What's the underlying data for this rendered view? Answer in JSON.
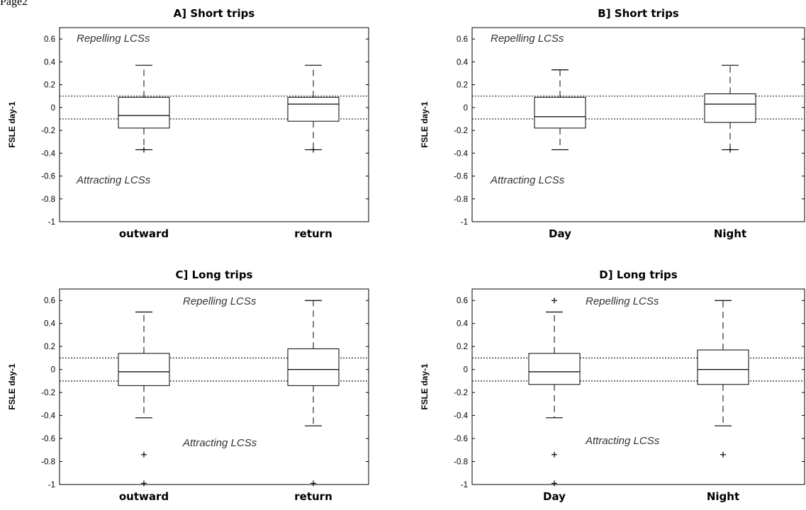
{
  "page_label": "Page2",
  "chart_data": [
    {
      "type": "box",
      "title": "A] Short trips",
      "ylabel": "FSLE day-1",
      "ylim": [
        -1,
        0.7
      ],
      "yticks": [
        "0.6",
        "0.4",
        "0.2",
        "0",
        "-0.2",
        "-0.4",
        "-0.6",
        "-0.8",
        "-1"
      ],
      "yticks_values": [
        0.6,
        0.4,
        0.2,
        0,
        -0.2,
        -0.4,
        -0.6,
        -0.8,
        -1
      ],
      "reference_lines": [
        0.1,
        -0.1
      ],
      "annotations": {
        "top": "Repelling LCSs",
        "bottom": "Attracting LCSs"
      },
      "categories": [
        "outward",
        "return"
      ],
      "boxes": [
        {
          "whisker_low": -0.37,
          "q1": -0.18,
          "median": -0.07,
          "q3": 0.09,
          "whisker_high": 0.37,
          "outliers": [
            -0.37
          ]
        },
        {
          "whisker_low": -0.37,
          "q1": -0.12,
          "median": 0.03,
          "q3": 0.09,
          "whisker_high": 0.37,
          "outliers": [
            -0.37
          ]
        }
      ]
    },
    {
      "type": "box",
      "title": "B] Short trips",
      "ylabel": "FSLE day-1",
      "ylim": [
        -1,
        0.7
      ],
      "yticks": [
        "0.6",
        "0.4",
        "0.2",
        "0",
        "-0.2",
        "-0.4",
        "-0.6",
        "-0.8",
        "-1"
      ],
      "yticks_values": [
        0.6,
        0.4,
        0.2,
        0,
        -0.2,
        -0.4,
        -0.6,
        -0.8,
        -1
      ],
      "reference_lines": [
        0.1,
        -0.1
      ],
      "annotations": {
        "top": "Repelling LCSs",
        "bottom": "Attracting LCSs"
      },
      "categories": [
        "Day",
        "Night"
      ],
      "boxes": [
        {
          "whisker_low": -0.37,
          "q1": -0.18,
          "median": -0.08,
          "q3": 0.09,
          "whisker_high": 0.33,
          "outliers": []
        },
        {
          "whisker_low": -0.37,
          "q1": -0.13,
          "median": 0.03,
          "q3": 0.12,
          "whisker_high": 0.37,
          "outliers": [
            -0.37
          ]
        }
      ]
    },
    {
      "type": "box",
      "title": "C] Long trips",
      "ylabel": "FSLE day-1",
      "ylim": [
        -1,
        0.7
      ],
      "yticks": [
        "0.6",
        "0.4",
        "0.2",
        "0",
        "-0.2",
        "-0.4",
        "-0.6",
        "-0.8",
        "-1"
      ],
      "yticks_values": [
        0.6,
        0.4,
        0.2,
        0,
        -0.2,
        -0.4,
        -0.6,
        -0.8,
        -1
      ],
      "reference_lines": [
        0.1,
        -0.1
      ],
      "annotations": {
        "top": "Repelling LCSs",
        "bottom": "Attracting LCSs"
      },
      "categories": [
        "outward",
        "return"
      ],
      "boxes": [
        {
          "whisker_low": -0.42,
          "q1": -0.14,
          "median": -0.02,
          "q3": 0.14,
          "whisker_high": 0.5,
          "outliers": [
            -0.74,
            -0.99
          ]
        },
        {
          "whisker_low": -0.49,
          "q1": -0.14,
          "median": 0.0,
          "q3": 0.18,
          "whisker_high": 0.6,
          "outliers": [
            -0.99
          ]
        }
      ]
    },
    {
      "type": "box",
      "title": "D] Long trips",
      "ylabel": "FSLE day-1",
      "ylim": [
        -1,
        0.7
      ],
      "yticks": [
        "0.6",
        "0.4",
        "0.2",
        "0",
        "-0.2",
        "-0.4",
        "-0.6",
        "-0.8",
        "-1"
      ],
      "yticks_values": [
        0.6,
        0.4,
        0.2,
        0,
        -0.2,
        -0.4,
        -0.6,
        -0.8,
        -1
      ],
      "reference_lines": [
        0.1,
        -0.1
      ],
      "annotations": {
        "top": "Repelling LCSs",
        "bottom": "Attracting LCSs"
      },
      "categories": [
        "Day",
        "Night"
      ],
      "boxes": [
        {
          "whisker_low": -0.42,
          "q1": -0.13,
          "median": -0.02,
          "q3": 0.14,
          "whisker_high": 0.5,
          "outliers": [
            0.6,
            -0.74,
            -0.99
          ]
        },
        {
          "whisker_low": -0.49,
          "q1": -0.13,
          "median": 0.0,
          "q3": 0.17,
          "whisker_high": 0.6,
          "outliers": [
            -0.74
          ]
        }
      ]
    }
  ]
}
